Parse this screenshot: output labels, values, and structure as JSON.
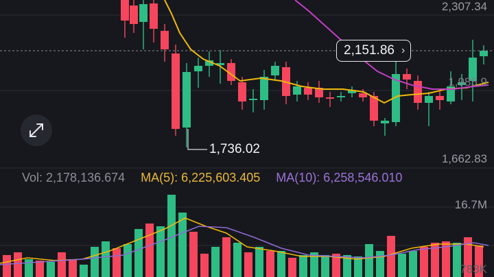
{
  "colors": {
    "up": "#2ebd85",
    "down": "#f6465d",
    "ma5": "#f0b90b",
    "ma10": "#c33ec6",
    "vol_ma10": "#8e6bd6",
    "grid": "#2a2c33"
  },
  "price_axis": {
    "high": "2,307.34",
    "mid": "1,985.9",
    "low": "1,662.83"
  },
  "current_price": "2,151.86",
  "low_marker": "1,736.02",
  "volume_axis": {
    "top": "16.7M",
    "bottom": "783K"
  },
  "volume_info": {
    "vol": "Vol: 2,178,136.674",
    "ma5": "MA(5): 6,225,603.405",
    "ma10": "MA(10): 6,258,546.010"
  },
  "icons": {
    "expand": "expand-arrows-icon",
    "chevron": "chevron-right-icon"
  }
}
